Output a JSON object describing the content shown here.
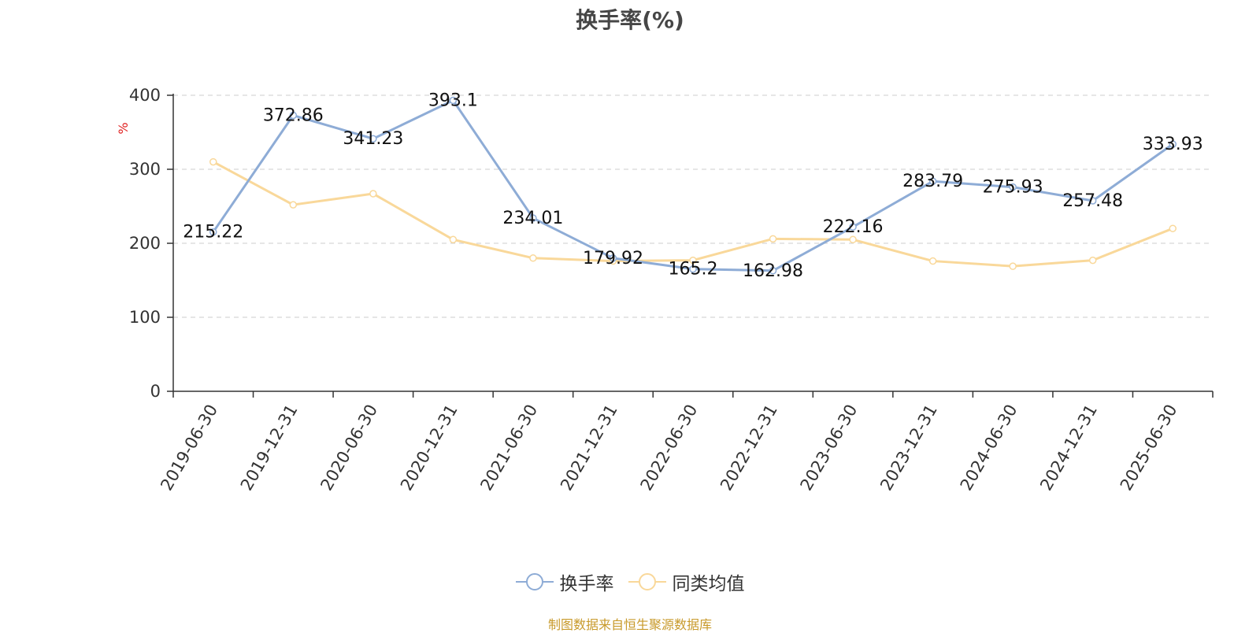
{
  "chart_data": {
    "type": "line",
    "title": "换手率(%)",
    "ylabel": "%",
    "xlabel": "",
    "ylim": [
      0,
      400
    ],
    "yticks": [
      0,
      100,
      200,
      300,
      400
    ],
    "grid": true,
    "legend_position": "bottom",
    "categories": [
      "2019-06-30",
      "2019-12-31",
      "2020-06-30",
      "2020-12-31",
      "2021-06-30",
      "2021-12-31",
      "2022-06-30",
      "2022-12-31",
      "2023-06-30",
      "2023-12-31",
      "2024-06-30",
      "2024-12-31",
      "2025-06-30"
    ],
    "series": [
      {
        "name": "换手率",
        "color": "#8eacd6",
        "show_labels": true,
        "labels": [
          "215.22",
          "372.86",
          "341.23",
          "393.1",
          "234.01",
          "179.92",
          "165.2",
          "162.98",
          "222.16",
          "283.79",
          "275.93",
          "257.48",
          "333.93"
        ],
        "values": [
          215.22,
          372.86,
          341.23,
          393.1,
          234.01,
          179.92,
          165.2,
          162.98,
          222.16,
          283.79,
          275.93,
          257.48,
          333.93
        ]
      },
      {
        "name": "同类均值",
        "color": "#f9d89a",
        "show_labels": false,
        "values": [
          310,
          252,
          267,
          205,
          180,
          176,
          177,
          206,
          205,
          176,
          169,
          177,
          220
        ]
      }
    ]
  },
  "footnote": "制图数据来自恒生聚源数据库"
}
